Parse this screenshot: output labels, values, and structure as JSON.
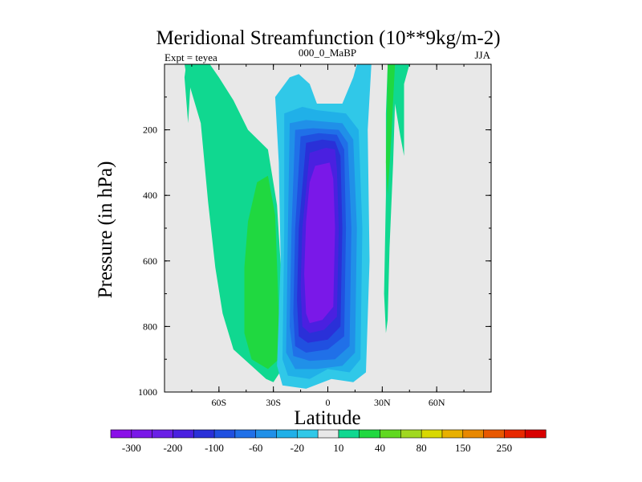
{
  "chart_data": {
    "type": "contour",
    "title": "Meridional Streamfunction (10**9kg/m-2)",
    "left_label": "Expt = teyea",
    "center_label": "000_0_MaBP",
    "right_label": "JJA",
    "xlabel": "Latitude",
    "ylabel": "Pressure (in hPa)",
    "x_range": [
      -90,
      90
    ],
    "y_range": [
      0,
      1000
    ],
    "y_inverted": true,
    "x_ticks": [
      {
        "value": -60,
        "label": "60S"
      },
      {
        "value": -30,
        "label": "30S"
      },
      {
        "value": 0,
        "label": "0"
      },
      {
        "value": 30,
        "label": "30N"
      },
      {
        "value": 60,
        "label": "60N"
      }
    ],
    "y_ticks": [
      {
        "value": 200,
        "label": "200"
      },
      {
        "value": 400,
        "label": "400"
      },
      {
        "value": 600,
        "label": "600"
      },
      {
        "value": 800,
        "label": "800"
      },
      {
        "value": 1000,
        "label": "1000"
      }
    ],
    "background_color": "#e8e8e8",
    "levels": [
      -300,
      -250,
      -200,
      -150,
      -100,
      -80,
      -60,
      -40,
      -20,
      -10,
      10,
      20,
      40,
      60,
      80,
      100,
      150,
      200,
      250,
      300
    ],
    "colorbar": {
      "colors": [
        "#8a10e8",
        "#7a18e8",
        "#6a20e6",
        "#4a20e0",
        "#2a30d8",
        "#2050e0",
        "#2070e8",
        "#2090e8",
        "#20b0e8",
        "#30c8e8",
        "#e8e8e8",
        "#10d890",
        "#20d840",
        "#60d820",
        "#a0d820",
        "#d8d800",
        "#e8b000",
        "#e88800",
        "#e85800",
        "#e82800",
        "#d80000"
      ],
      "labels": [
        "-300",
        "-200",
        "-100",
        "-60",
        "-20",
        "10",
        "40",
        "80",
        "150",
        "250"
      ]
    },
    "regions": [
      {
        "name": "southern-positive-cell",
        "value": 10,
        "color": "#10d890",
        "points": [
          [
            -79,
            0
          ],
          [
            -65,
            0
          ],
          [
            -60,
            40
          ],
          [
            -52,
            110
          ],
          [
            -44,
            200
          ],
          [
            -33,
            260
          ],
          [
            -28,
            430
          ],
          [
            -25,
            700
          ],
          [
            -24,
            920
          ],
          [
            -30,
            970
          ],
          [
            -34,
            960
          ],
          [
            -52,
            870
          ],
          [
            -58,
            760
          ],
          [
            -62,
            620
          ],
          [
            -66,
            420
          ],
          [
            -70,
            180
          ],
          [
            -78,
            30
          ]
        ]
      },
      {
        "name": "southern-positive-core",
        "value": 20,
        "color": "#20d840",
        "points": [
          [
            -39,
            360
          ],
          [
            -33,
            340
          ],
          [
            -29,
            460
          ],
          [
            -27,
            760
          ],
          [
            -27,
            900
          ],
          [
            -33,
            930
          ],
          [
            -42,
            900
          ],
          [
            -46,
            820
          ],
          [
            -46,
            620
          ],
          [
            -44,
            480
          ]
        ]
      },
      {
        "name": "high-lat-sliver",
        "value": 10,
        "color": "#10d890",
        "points": [
          [
            -78,
            0
          ],
          [
            -75,
            0
          ],
          [
            -77,
            180
          ],
          [
            -79,
            40
          ]
        ]
      },
      {
        "name": "hadley-cell-outer",
        "value": -10,
        "color": "#30c8e8",
        "points": [
          [
            -21,
            40
          ],
          [
            -16,
            30
          ],
          [
            -10,
            60
          ],
          [
            -6,
            120
          ],
          [
            8,
            120
          ],
          [
            14,
            40
          ],
          [
            16,
            0
          ],
          [
            24,
            0
          ],
          [
            22,
            200
          ],
          [
            23,
            600
          ],
          [
            21,
            940
          ],
          [
            14,
            970
          ],
          [
            2,
            960
          ],
          [
            -12,
            990
          ],
          [
            -25,
            980
          ],
          [
            -28,
            920
          ],
          [
            -26,
            600
          ],
          [
            -27,
            300
          ],
          [
            -29,
            100
          ]
        ]
      },
      {
        "name": "hadley-cell-l2",
        "value": -20,
        "color": "#20b0e8",
        "points": [
          [
            -24,
            150
          ],
          [
            -14,
            130
          ],
          [
            -6,
            140
          ],
          [
            10,
            150
          ],
          [
            17,
            200
          ],
          [
            19,
            500
          ],
          [
            18,
            900
          ],
          [
            12,
            940
          ],
          [
            0,
            930
          ],
          [
            -10,
            960
          ],
          [
            -22,
            950
          ],
          [
            -25,
            900
          ],
          [
            -24,
            500
          ]
        ]
      },
      {
        "name": "hadley-cell-l3",
        "value": -40,
        "color": "#2090e8",
        "points": [
          [
            -21,
            180
          ],
          [
            -12,
            170
          ],
          [
            8,
            180
          ],
          [
            14,
            230
          ],
          [
            16,
            500
          ],
          [
            15,
            880
          ],
          [
            8,
            920
          ],
          [
            -6,
            930
          ],
          [
            -18,
            930
          ],
          [
            -23,
            880
          ],
          [
            -22,
            500
          ]
        ]
      },
      {
        "name": "hadley-cell-l4",
        "value": -60,
        "color": "#2070e8",
        "points": [
          [
            -18,
            200
          ],
          [
            -8,
            195
          ],
          [
            6,
            200
          ],
          [
            11,
            240
          ],
          [
            13,
            500
          ],
          [
            12,
            860
          ],
          [
            4,
            900
          ],
          [
            -10,
            905
          ],
          [
            -19,
            890
          ],
          [
            -21,
            800
          ],
          [
            -20,
            500
          ]
        ]
      },
      {
        "name": "hadley-cell-l5",
        "value": -80,
        "color": "#2050e0",
        "points": [
          [
            -15,
            220
          ],
          [
            -5,
            210
          ],
          [
            5,
            215
          ],
          [
            9,
            260
          ],
          [
            10,
            500
          ],
          [
            9,
            830
          ],
          [
            0,
            870
          ],
          [
            -12,
            880
          ],
          [
            -18,
            860
          ],
          [
            -19,
            760
          ],
          [
            -18,
            500
          ]
        ]
      },
      {
        "name": "hadley-cell-l6",
        "value": -100,
        "color": "#2a30d8",
        "points": [
          [
            -12,
            240
          ],
          [
            -3,
            230
          ],
          [
            4,
            235
          ],
          [
            7,
            280
          ],
          [
            8,
            500
          ],
          [
            7,
            800
          ],
          [
            0,
            840
          ],
          [
            -11,
            850
          ],
          [
            -16,
            830
          ],
          [
            -17,
            720
          ],
          [
            -16,
            500
          ]
        ]
      },
      {
        "name": "hadley-cell-l7",
        "value": -150,
        "color": "#4a20e0",
        "points": [
          [
            -10,
            270
          ],
          [
            -1,
            255
          ],
          [
            4,
            260
          ],
          [
            5,
            320
          ],
          [
            6,
            500
          ],
          [
            5,
            770
          ],
          [
            -2,
            810
          ],
          [
            -10,
            820
          ],
          [
            -14,
            800
          ],
          [
            -15,
            680
          ],
          [
            -14,
            500
          ]
        ]
      },
      {
        "name": "hadley-cell-core",
        "value": -200,
        "color": "#7a18e8",
        "points": [
          [
            -7,
            310
          ],
          [
            1,
            300
          ],
          [
            3,
            350
          ],
          [
            4,
            500
          ],
          [
            3,
            740
          ],
          [
            -3,
            780
          ],
          [
            -10,
            790
          ],
          [
            -12,
            760
          ],
          [
            -13,
            640
          ],
          [
            -12,
            480
          ],
          [
            -10,
            360
          ]
        ]
      },
      {
        "name": "northern-positive-band",
        "value": 10,
        "color": "#10d890",
        "points": [
          [
            33,
            0
          ],
          [
            45,
            0
          ],
          [
            42,
            60
          ],
          [
            42,
            280
          ],
          [
            40,
            220
          ],
          [
            37,
            120
          ],
          [
            36,
            300
          ],
          [
            34,
            560
          ],
          [
            33,
            780
          ],
          [
            32,
            820
          ],
          [
            31,
            700
          ],
          [
            32,
            400
          ],
          [
            32,
            150
          ]
        ]
      },
      {
        "name": "northern-positive-core",
        "value": 20,
        "color": "#20d840",
        "points": [
          [
            33,
            0
          ],
          [
            37,
            0
          ],
          [
            35,
            220
          ],
          [
            33,
            400
          ],
          [
            32,
            300
          ]
        ]
      }
    ]
  }
}
